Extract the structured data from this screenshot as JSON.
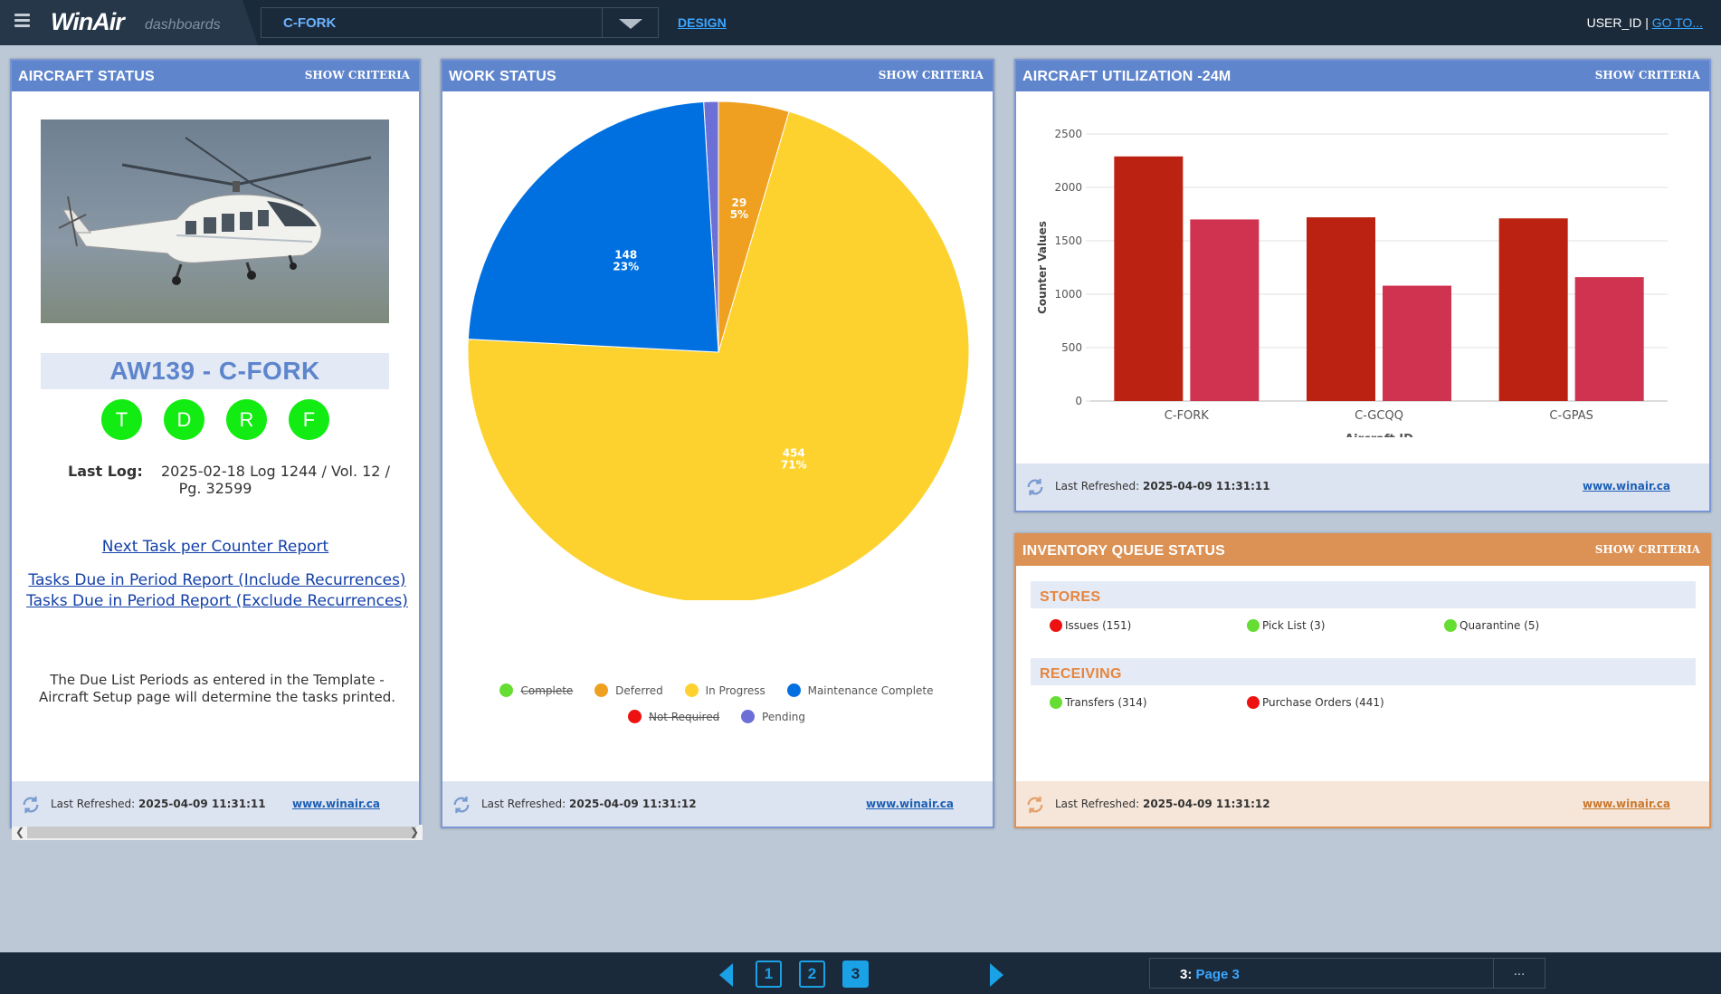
{
  "header": {
    "logo_main": "WinAir",
    "logo_sub": "dashboards",
    "aircraft_selected": "C-FORK",
    "design_link": "DESIGN",
    "user_id": "USER_ID",
    "separator": "|",
    "goto_link": "GO TO..."
  },
  "panels": {
    "aircraft_status": {
      "title": "AIRCRAFT STATUS",
      "criteria": "SHOW CRITERIA",
      "model": "AW139 - C-FORK",
      "status_circles": [
        "T",
        "D",
        "R",
        "F"
      ],
      "last_log_label": "Last Log:",
      "last_log_line1": "2025-02-18 Log 1244 / Vol. 12 /",
      "last_log_line2": "Pg. 32599",
      "link_next_task": "Next Task per Counter Report",
      "link_include": "Tasks Due in Period Report (Include Recurrences)",
      "link_exclude": "Tasks Due in Period Report (Exclude Recurrences)",
      "note_line1": "The Due List Periods as entered in the Template -",
      "note_line2": "Aircraft Setup page will determine the tasks printed.",
      "refresh_label": "Last Refreshed:",
      "refresh_time": "2025-04-09 11:31:11",
      "site": "www.winair.ca"
    },
    "work_status": {
      "title": "WORK STATUS",
      "criteria": "SHOW CRITERIA",
      "refresh_label": "Last Refreshed:",
      "refresh_time": "2025-04-09 11:31:12",
      "site": "www.winair.ca"
    },
    "utilization": {
      "title": "AIRCRAFT UTILIZATION -24M",
      "criteria": "SHOW CRITERIA",
      "refresh_label": "Last Refreshed:",
      "refresh_time": "2025-04-09 11:31:11",
      "site": "www.winair.ca"
    },
    "inventory": {
      "title": "INVENTORY QUEUE STATUS",
      "criteria": "SHOW CRITERIA",
      "stores_label": "STORES",
      "stores": [
        {
          "label": "Issues (151)",
          "color": "#ee1111"
        },
        {
          "label": "Pick List (3)",
          "color": "#66dd33"
        },
        {
          "label": "Quarantine (5)",
          "color": "#66dd33"
        }
      ],
      "receiving_label": "RECEIVING",
      "receiving": [
        {
          "label": "Transfers (314)",
          "color": "#66dd33"
        },
        {
          "label": "Purchase Orders (441)",
          "color": "#ee1111"
        }
      ],
      "refresh_label": "Last Refreshed:",
      "refresh_time": "2025-04-09 11:31:12",
      "site": "www.winair.ca"
    }
  },
  "chart_data": [
    {
      "type": "pie",
      "title": "",
      "slices": [
        {
          "label": "Complete",
          "value": 0,
          "color": "#66dd33",
          "hidden": true
        },
        {
          "label": "Deferred",
          "value": 29,
          "pct": "5%",
          "color": "#f0a020"
        },
        {
          "label": "In Progress",
          "value": 454,
          "pct": "71%",
          "color": "#fdd22e"
        },
        {
          "label": "Maintenance Complete",
          "value": 148,
          "pct": "23%",
          "color": "#0070e0"
        },
        {
          "label": "Not Required",
          "value": 0,
          "color": "#ee1111",
          "hidden": true
        },
        {
          "label": "Pending",
          "value": 6,
          "color": "#6b6fd6"
        }
      ]
    },
    {
      "type": "bar",
      "categories": [
        "C-FORK",
        "C-GCQQ",
        "C-GPAS"
      ],
      "series": [
        {
          "values": [
            2290,
            1720,
            1710
          ],
          "color": "#bb2211"
        },
        {
          "values": [
            1700,
            1080,
            1160
          ],
          "color": "#d0334f"
        }
      ],
      "series_layout_note": "",
      "xlabel": "Aircraft ID",
      "ylabel": "Counter Values",
      "ylim": [
        0,
        2500
      ],
      "yticks": [
        "0",
        "500",
        "1000",
        "1500",
        "2000",
        "2500"
      ]
    }
  ],
  "pager": {
    "pages": [
      "1",
      "2",
      "3"
    ],
    "active": "3",
    "current_num": "3:",
    "current_name": "Page 3",
    "more": "..."
  },
  "colors": {
    "topbar": "#1b2a3b",
    "panel_header": "#5f85cd",
    "inventory_header": "#dc9155",
    "accent": "#1aa1e6"
  }
}
